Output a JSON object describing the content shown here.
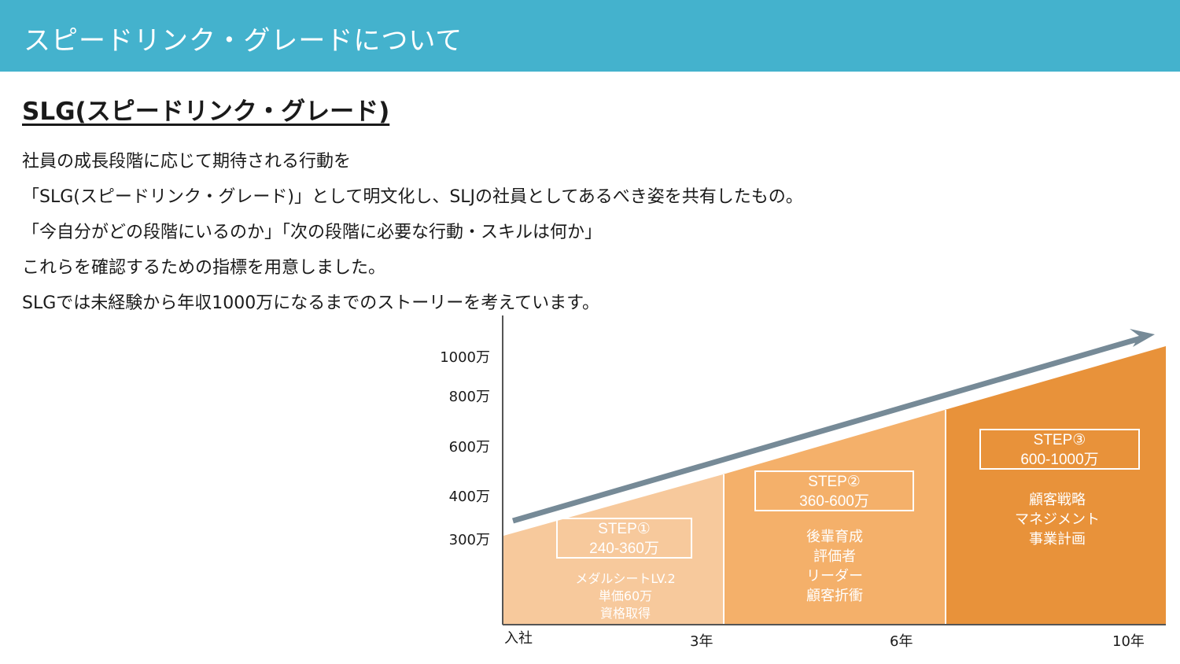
{
  "header": {
    "title": "スピードリンク・グレードについて"
  },
  "section": {
    "title": "SLG(スピードリンク・グレード)"
  },
  "body_lines": [
    "社員の成長段階に応じて期待される行動を",
    "「SLG(スピードリンク・グレード)」として明文化し、SLJの社員としてあるべき姿を共有したもの。",
    "「今自分がどの段階にいるのか」「次の段階に必要な行動・スキルは何か」",
    "これらを確認するための指標を用意しました。",
    "SLGでは未経験から年収1000万になるまでのストーリーを考えています。"
  ],
  "diagram": {
    "y_labels": [
      "1000万",
      "800万",
      "600万",
      "400万",
      "300万"
    ],
    "x_labels": [
      "入社",
      "3年",
      "6年",
      "10年"
    ],
    "colors": {
      "step1": "#f7c99c",
      "step2": "#f4b06a",
      "step3": "#e8923a",
      "arrow": "#768a97",
      "header": "#44b2cd"
    },
    "steps": [
      {
        "title": "STEP①",
        "range": "240-360万",
        "desc": [
          "メダルシートLV.2",
          "単価60万",
          "資格取得"
        ]
      },
      {
        "title": "STEP②",
        "range": "360-600万",
        "desc": [
          "後輩育成",
          "評価者",
          "リーダー",
          "顧客折衝"
        ]
      },
      {
        "title": "STEP③",
        "range": "600-1000万",
        "desc": [
          "顧客戦略",
          "マネジメント",
          "事業計画"
        ]
      }
    ]
  }
}
